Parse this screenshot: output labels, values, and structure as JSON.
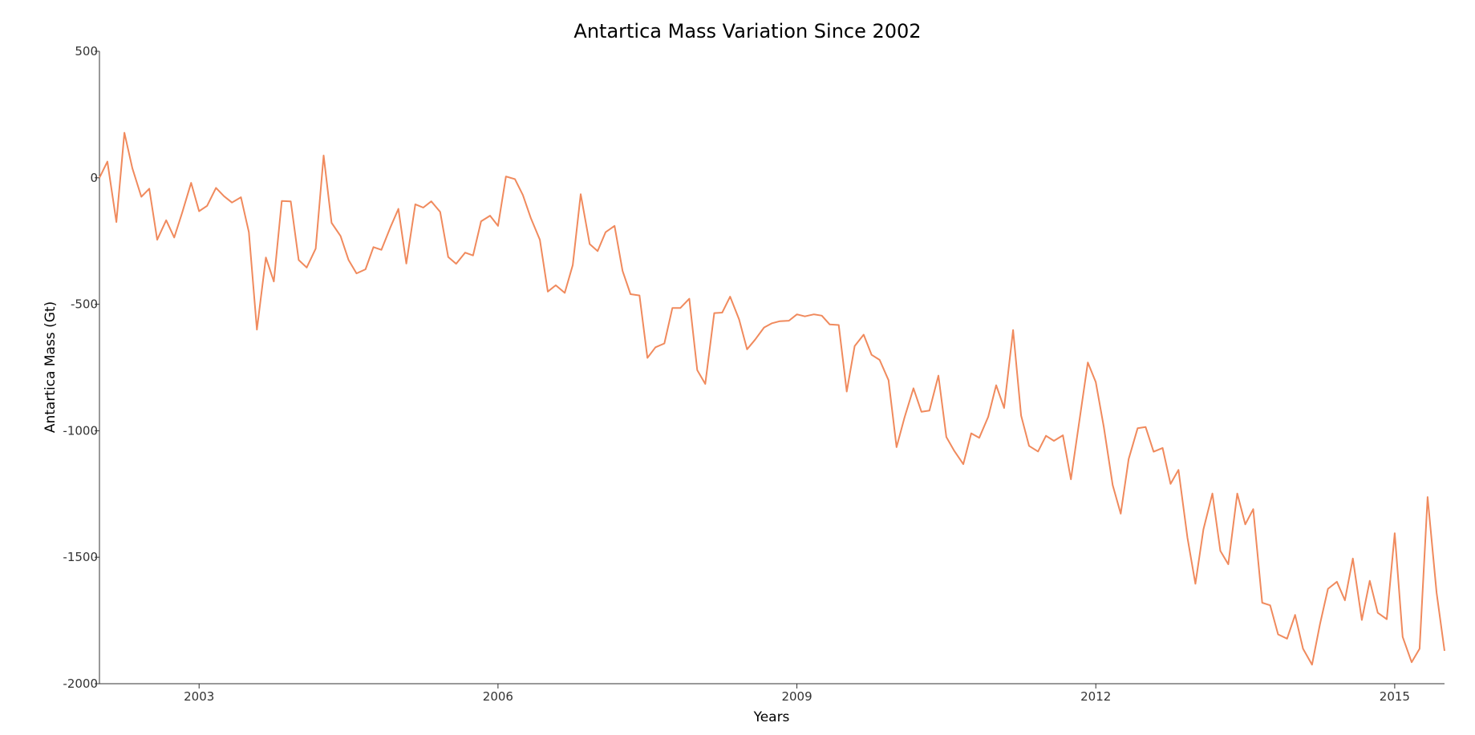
{
  "chart_data": {
    "type": "line",
    "title": "Antartica Mass Variation Since 2002",
    "xlabel": "Years",
    "ylabel": "Antartica Mass (Gt)",
    "xlim": [
      2002.0,
      2015.5
    ],
    "ylim": [
      -2000,
      500
    ],
    "xticks": [
      2003,
      2006,
      2009,
      2012,
      2015
    ],
    "yticks": [
      500,
      0,
      -500,
      -1000,
      -1500,
      -2000
    ],
    "grid": false,
    "legend": "none",
    "series": [
      {
        "color": "#f08a5d",
        "points": [
          [
            2002.0,
            0
          ],
          [
            2002.08,
            64
          ],
          [
            2002.17,
            -175
          ],
          [
            2002.25,
            178
          ],
          [
            2002.33,
            38
          ],
          [
            2002.42,
            -75
          ],
          [
            2002.5,
            -43
          ],
          [
            2002.58,
            -245
          ],
          [
            2002.67,
            -168
          ],
          [
            2002.75,
            -236
          ],
          [
            2002.83,
            -138
          ],
          [
            2002.92,
            -20
          ],
          [
            2003.0,
            -132
          ],
          [
            2003.08,
            -111
          ],
          [
            2003.17,
            -40
          ],
          [
            2003.25,
            -73
          ],
          [
            2003.33,
            -98
          ],
          [
            2003.42,
            -77
          ],
          [
            2003.5,
            -215
          ],
          [
            2003.58,
            -600
          ],
          [
            2003.67,
            -315
          ],
          [
            2003.75,
            -410
          ],
          [
            2003.83,
            -92
          ],
          [
            2003.92,
            -93
          ],
          [
            2004.0,
            -325
          ],
          [
            2004.08,
            -355
          ],
          [
            2004.17,
            -280
          ],
          [
            2004.25,
            88
          ],
          [
            2004.33,
            -178
          ],
          [
            2004.42,
            -230
          ],
          [
            2004.5,
            -325
          ],
          [
            2004.58,
            -378
          ],
          [
            2004.67,
            -362
          ],
          [
            2004.75,
            -274
          ],
          [
            2004.83,
            -285
          ],
          [
            2004.92,
            -196
          ],
          [
            2005.0,
            -123
          ],
          [
            2005.08,
            -339
          ],
          [
            2005.17,
            -105
          ],
          [
            2005.25,
            -118
          ],
          [
            2005.33,
            -93
          ],
          [
            2005.42,
            -135
          ],
          [
            2005.5,
            -313
          ],
          [
            2005.58,
            -340
          ],
          [
            2005.67,
            -296
          ],
          [
            2005.75,
            -307
          ],
          [
            2005.83,
            -172
          ],
          [
            2005.92,
            -150
          ],
          [
            2006.0,
            -190
          ],
          [
            2006.08,
            5
          ],
          [
            2006.17,
            -5
          ],
          [
            2006.25,
            -68
          ],
          [
            2006.33,
            -160
          ],
          [
            2006.42,
            -245
          ],
          [
            2006.5,
            -450
          ],
          [
            2006.58,
            -425
          ],
          [
            2006.67,
            -455
          ],
          [
            2006.75,
            -345
          ],
          [
            2006.83,
            -65
          ],
          [
            2006.92,
            -262
          ],
          [
            2007.0,
            -290
          ],
          [
            2007.08,
            -215
          ],
          [
            2007.17,
            -190
          ],
          [
            2007.25,
            -368
          ],
          [
            2007.33,
            -460
          ],
          [
            2007.42,
            -465
          ],
          [
            2007.5,
            -712
          ],
          [
            2007.58,
            -670
          ],
          [
            2007.67,
            -655
          ],
          [
            2007.75,
            -515
          ],
          [
            2007.83,
            -515
          ],
          [
            2007.92,
            -478
          ],
          [
            2008.0,
            -760
          ],
          [
            2008.08,
            -815
          ],
          [
            2008.17,
            -535
          ],
          [
            2008.25,
            -533
          ],
          [
            2008.33,
            -470
          ],
          [
            2008.42,
            -560
          ],
          [
            2008.5,
            -678
          ],
          [
            2008.58,
            -640
          ],
          [
            2008.67,
            -592
          ],
          [
            2008.75,
            -575
          ],
          [
            2008.83,
            -567
          ],
          [
            2008.92,
            -565
          ],
          [
            2009.0,
            -540
          ],
          [
            2009.08,
            -548
          ],
          [
            2009.17,
            -540
          ],
          [
            2009.25,
            -545
          ],
          [
            2009.33,
            -580
          ],
          [
            2009.42,
            -582
          ],
          [
            2009.5,
            -845
          ],
          [
            2009.58,
            -665
          ],
          [
            2009.67,
            -620
          ],
          [
            2009.75,
            -700
          ],
          [
            2009.83,
            -720
          ],
          [
            2009.92,
            -800
          ],
          [
            2010.0,
            -1065
          ],
          [
            2010.08,
            -948
          ],
          [
            2010.17,
            -832
          ],
          [
            2010.25,
            -925
          ],
          [
            2010.33,
            -920
          ],
          [
            2010.42,
            -782
          ],
          [
            2010.5,
            -1025
          ],
          [
            2010.58,
            -1080
          ],
          [
            2010.67,
            -1132
          ],
          [
            2010.75,
            -1010
          ],
          [
            2010.83,
            -1028
          ],
          [
            2010.92,
            -945
          ],
          [
            2011.0,
            -820
          ],
          [
            2011.08,
            -910
          ],
          [
            2011.17,
            -602
          ],
          [
            2011.25,
            -940
          ],
          [
            2011.33,
            -1060
          ],
          [
            2011.42,
            -1082
          ],
          [
            2011.5,
            -1020
          ],
          [
            2011.58,
            -1040
          ],
          [
            2011.67,
            -1018
          ],
          [
            2011.75,
            -1192
          ],
          [
            2011.83,
            -975
          ],
          [
            2011.92,
            -730
          ],
          [
            2012.0,
            -808
          ],
          [
            2012.08,
            -985
          ],
          [
            2012.17,
            -1215
          ],
          [
            2012.25,
            -1328
          ],
          [
            2012.33,
            -1112
          ],
          [
            2012.42,
            -990
          ],
          [
            2012.5,
            -985
          ],
          [
            2012.58,
            -1083
          ],
          [
            2012.67,
            -1068
          ],
          [
            2012.75,
            -1210
          ],
          [
            2012.83,
            -1155
          ],
          [
            2012.92,
            -1423
          ],
          [
            2013.0,
            -1605
          ],
          [
            2013.08,
            -1390
          ],
          [
            2013.17,
            -1248
          ],
          [
            2013.25,
            -1475
          ],
          [
            2013.33,
            -1528
          ],
          [
            2013.42,
            -1248
          ],
          [
            2013.5,
            -1370
          ],
          [
            2013.58,
            -1310
          ],
          [
            2013.67,
            -1680
          ],
          [
            2013.75,
            -1690
          ],
          [
            2013.83,
            -1805
          ],
          [
            2013.92,
            -1822
          ],
          [
            2014.0,
            -1728
          ],
          [
            2014.08,
            -1862
          ],
          [
            2014.17,
            -1925
          ],
          [
            2014.25,
            -1765
          ],
          [
            2014.33,
            -1625
          ],
          [
            2014.42,
            -1597
          ],
          [
            2014.5,
            -1670
          ],
          [
            2014.58,
            -1505
          ],
          [
            2014.67,
            -1748
          ],
          [
            2014.75,
            -1593
          ],
          [
            2014.83,
            -1720
          ],
          [
            2014.92,
            -1745
          ],
          [
            2015.0,
            -1405
          ],
          [
            2015.08,
            -1815
          ],
          [
            2015.17,
            -1915
          ],
          [
            2015.25,
            -1862
          ],
          [
            2015.33,
            -1262
          ],
          [
            2015.42,
            -1640
          ],
          [
            2015.5,
            -1870
          ]
        ]
      }
    ]
  }
}
